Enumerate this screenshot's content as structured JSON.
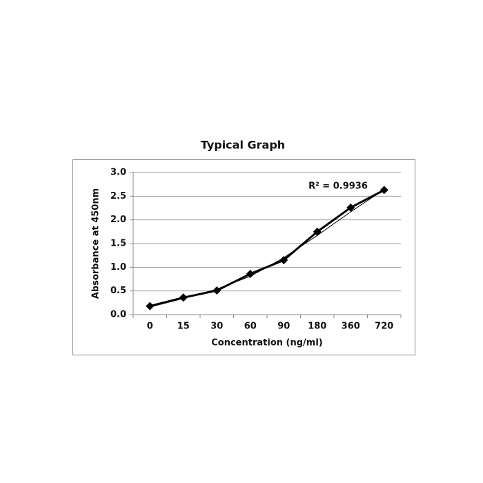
{
  "chart_data": {
    "type": "line",
    "title": "Typical Graph",
    "x_label": "Concentration (ng/ml)",
    "y_label": "Absorbance at 450nm",
    "annotation": "R² = 0.9936",
    "categories": [
      "0",
      "15",
      "30",
      "60",
      "90",
      "180",
      "360",
      "720"
    ],
    "series": [
      {
        "color": "#000000",
        "values": [
          0.18,
          0.36,
          0.51,
          0.86,
          1.15,
          1.75,
          2.26,
          2.63
        ]
      }
    ],
    "trendline": {
      "color": "#000000",
      "values": [
        0.16,
        0.34,
        0.54,
        0.81,
        1.2,
        1.67,
        2.17,
        2.64
      ]
    },
    "ylim": [
      0,
      3
    ],
    "yticks": [
      {
        "value": 0,
        "label": "0.0"
      },
      {
        "value": 0.5,
        "label": "0.5"
      },
      {
        "value": 1,
        "label": "1.0"
      },
      {
        "value": 1.5,
        "label": "1.5"
      },
      {
        "value": 2,
        "label": "2.0"
      },
      {
        "value": 2.5,
        "label": "2.5"
      },
      {
        "value": 3,
        "label": "3.0"
      }
    ],
    "grid": true
  }
}
